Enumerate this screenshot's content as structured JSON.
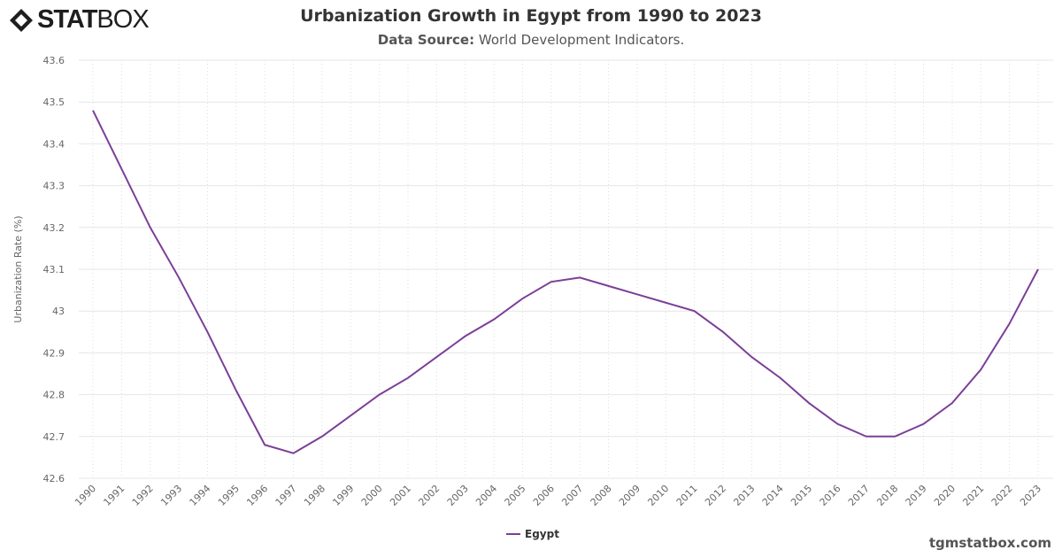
{
  "logo": {
    "text_bold": "STAT",
    "text_light": "BOX"
  },
  "header": {
    "title": "Urbanization Growth in Egypt from 1990 to 2023",
    "source_label": "Data Source:",
    "source_value": "World Development Indicators."
  },
  "credit": "tgmstatbox.com",
  "colors": {
    "series": "#7b3f98",
    "grid": "#e6e6e6"
  },
  "chart_data": {
    "type": "line",
    "title": "Urbanization Growth in Egypt from 1990 to 2023",
    "ylabel": "Urbanization Rate (%)",
    "xlabel": "",
    "ylim": [
      42.6,
      43.6
    ],
    "yticks": [
      "42.6",
      "42.7",
      "42.8",
      "42.9",
      "43",
      "43.1",
      "43.2",
      "43.3",
      "43.4",
      "43.5",
      "43.6"
    ],
    "x": [
      "1990",
      "1991",
      "1992",
      "1993",
      "1994",
      "1995",
      "1996",
      "1997",
      "1998",
      "1999",
      "2000",
      "2001",
      "2002",
      "2003",
      "2004",
      "2005",
      "2006",
      "2007",
      "2008",
      "2009",
      "2010",
      "2011",
      "2012",
      "2013",
      "2014",
      "2015",
      "2016",
      "2017",
      "2018",
      "2019",
      "2020",
      "2021",
      "2022",
      "2023"
    ],
    "grid": true,
    "legend": "bottom-center",
    "series": [
      {
        "name": "Egypt",
        "values": [
          43.48,
          43.34,
          43.2,
          43.08,
          42.95,
          42.81,
          42.68,
          42.66,
          42.7,
          42.75,
          42.8,
          42.84,
          42.89,
          42.94,
          42.98,
          43.03,
          43.07,
          43.08,
          43.06,
          43.04,
          43.02,
          43.0,
          42.95,
          42.89,
          42.84,
          42.78,
          42.73,
          42.7,
          42.7,
          42.73,
          42.78,
          42.86,
          42.97,
          43.1
        ]
      }
    ]
  }
}
